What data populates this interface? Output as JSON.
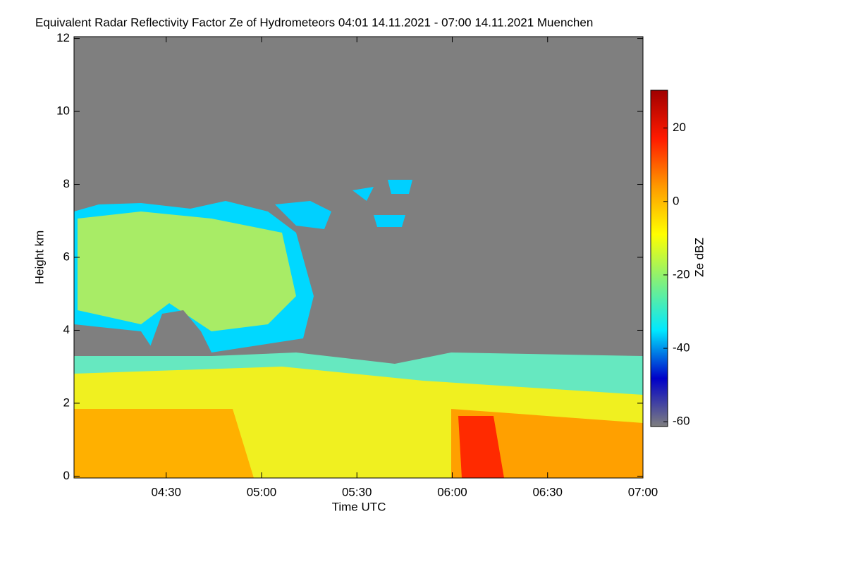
{
  "chart_data": {
    "type": "heatmap",
    "title": "Equivalent Radar Reflectivity Factor Ze of Hydrometeors   04:01 14.11.2021 - 07:00 14.11.2021 Muenchen",
    "x_label": "Time UTC",
    "y_label": "Height km",
    "xlim": [
      "04:01",
      "07:00"
    ],
    "xticks": [
      "04:30",
      "05:00",
      "05:30",
      "06:00",
      "06:30",
      "07:00"
    ],
    "ylim": [
      -0.05,
      12.05
    ],
    "yticks": [
      0,
      2,
      4,
      6,
      8,
      10,
      12
    ],
    "colorbar": {
      "label": "Ze dBZ",
      "clim": [
        -61.3,
        30.3
      ],
      "ticks": [
        20,
        0,
        -20,
        -40,
        -60
      ],
      "colormap": [
        "#7f7f7f",
        "#0000c8",
        "#00e8ff",
        "#7ff07f",
        "#ffff00",
        "#ff9900",
        "#ff1a00",
        "#a00000"
      ]
    }
  }
}
